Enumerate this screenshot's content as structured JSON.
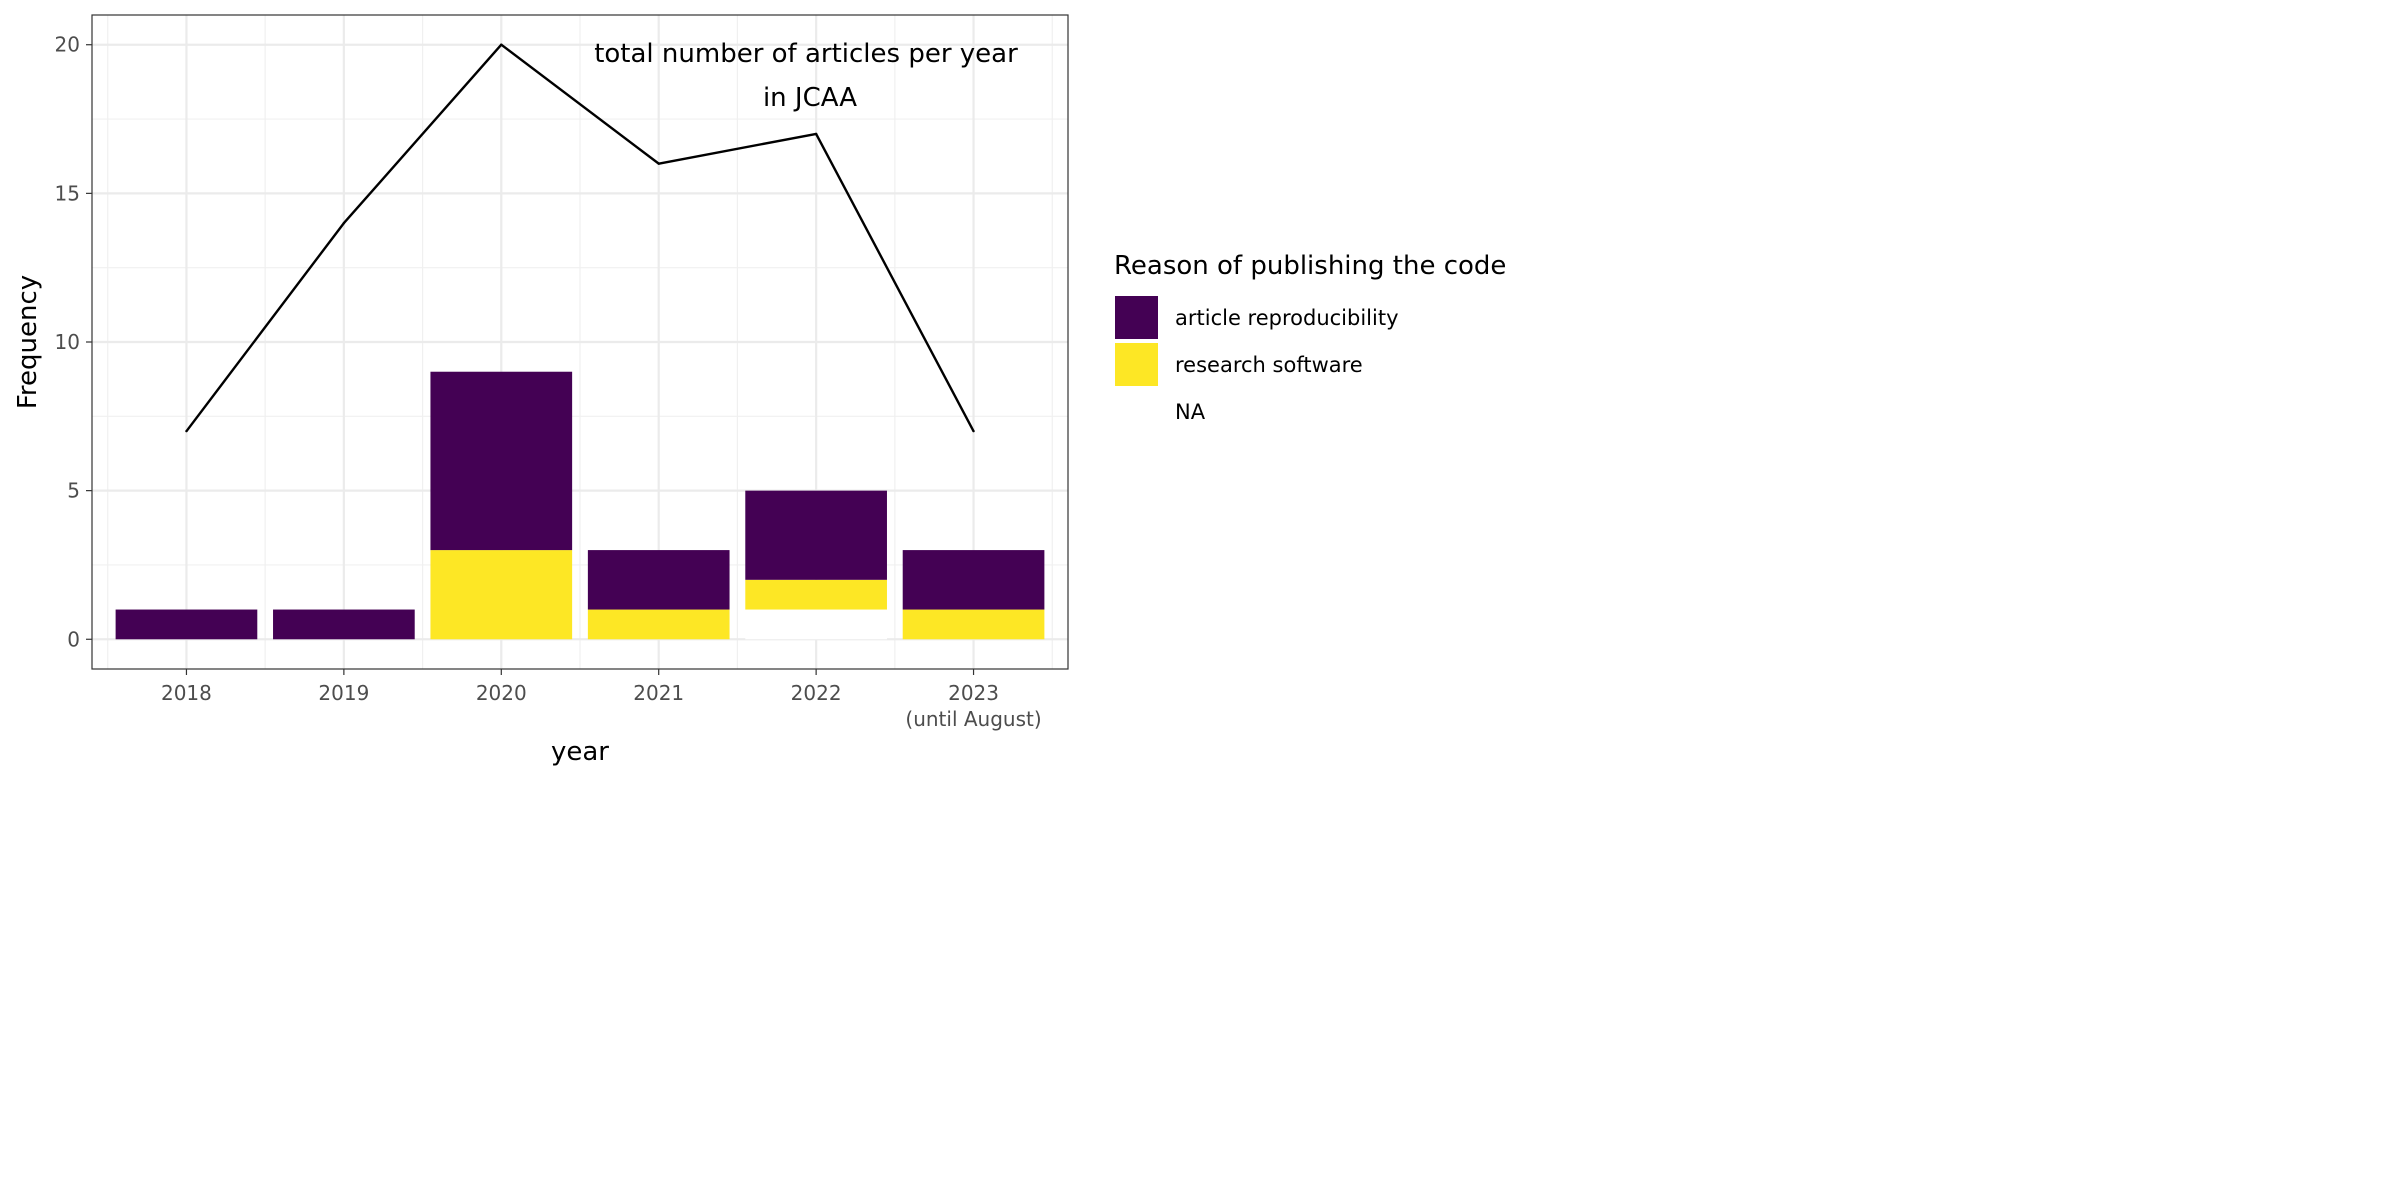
{
  "chart_data": {
    "type": "bar",
    "stacked": true,
    "categories": [
      "2018",
      "2019",
      "2020",
      "2021",
      "2022",
      "2023"
    ],
    "category_sublabels": [
      "",
      "",
      "",
      "",
      "",
      "(until August)"
    ],
    "series": [
      {
        "name": "article reproducibility",
        "color": "#440154",
        "values": [
          1,
          1,
          6,
          2,
          3,
          2
        ]
      },
      {
        "name": "research software",
        "color": "#FDE725",
        "values": [
          0,
          0,
          3,
          1,
          1,
          1
        ]
      },
      {
        "name": "NA",
        "color": "#ffffff",
        "values": [
          0,
          0,
          0,
          0,
          1,
          0
        ]
      }
    ],
    "line": {
      "values": [
        7,
        14,
        20,
        16,
        17,
        7
      ],
      "color": "#000000",
      "annotation": [
        "total number of articles per year",
        "in JCAA"
      ]
    },
    "xlabel": "year",
    "ylabel": "Frequency",
    "ylim": [
      -1,
      21
    ],
    "yticks": [
      0,
      5,
      10,
      15,
      20
    ],
    "grid": true,
    "legend": {
      "title": "Reason of publishing the code",
      "position": "right"
    }
  }
}
